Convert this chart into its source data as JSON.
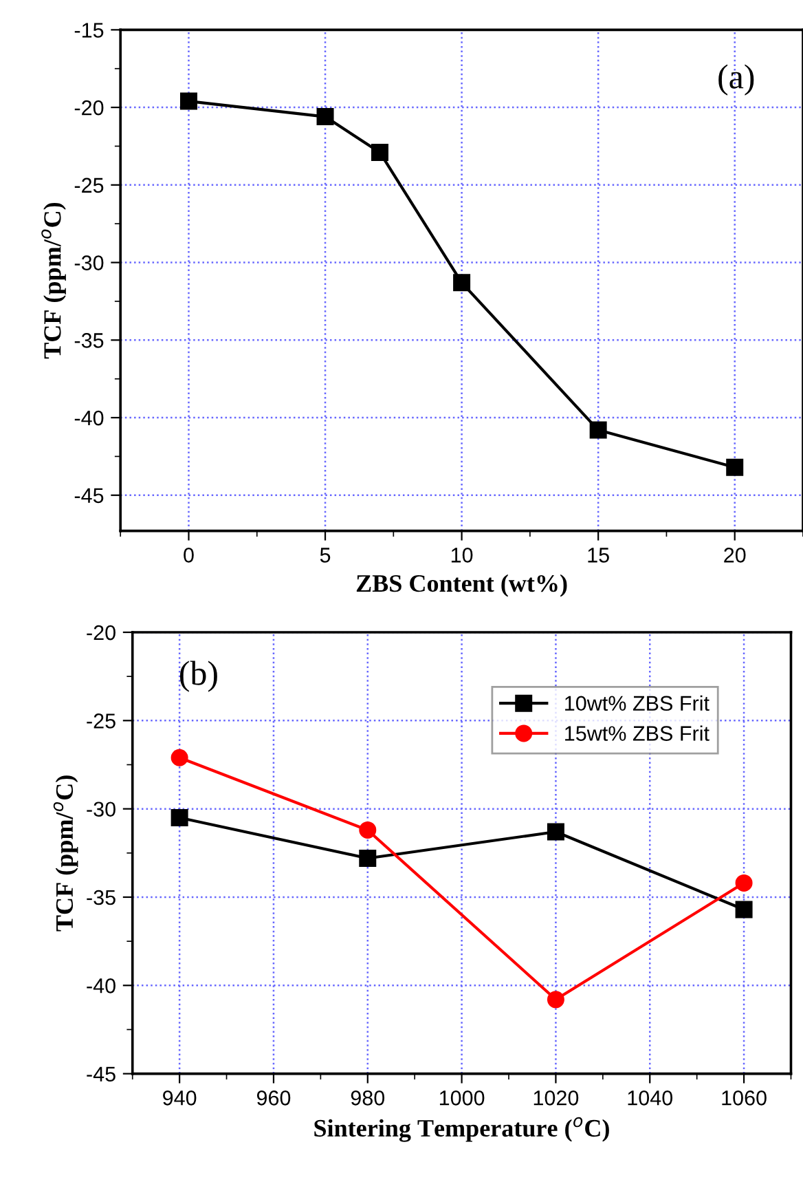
{
  "chart_data": [
    {
      "type": "line",
      "xlabel": "ZBS Content (wt%)",
      "ylabel": "TCF (ppm/$^{o}$C)",
      "annotations": [
        "(a)"
      ],
      "x": [
        0,
        5,
        7,
        10,
        15,
        20
      ],
      "series": [
        {
          "color": "#000000",
          "values": [
            -19.6,
            -20.6,
            -22.9,
            -31.3,
            -40.8,
            -43.2
          ],
          "marker": "square"
        }
      ],
      "xlim": [
        -2.5,
        22.5
      ],
      "ylim": [
        -47.3,
        -15
      ],
      "xticks": [
        0,
        5,
        10,
        15,
        20
      ],
      "yticks": [
        -45,
        -40,
        -35,
        -30,
        -25,
        -20,
        -15
      ],
      "grid": true,
      "line_style": "solid"
    },
    {
      "type": "line",
      "xlabel": "Sintering Temperature ($^{o}$C)",
      "ylabel": "TCF (ppm/$^{o}$C)",
      "annotations": [
        "(b)"
      ],
      "x": [
        940,
        980,
        1020,
        1060
      ],
      "series": [
        {
          "name": "10wt% ZBS Frit",
          "color": "#000000",
          "values": [
            -30.5,
            -32.8,
            -31.3,
            -35.7
          ],
          "marker": "square"
        },
        {
          "name": "15wt% ZBS Frit",
          "color": "#ff0000",
          "values": [
            -27.1,
            -31.2,
            -40.8,
            -34.2
          ],
          "marker": "circle"
        }
      ],
      "xlim": [
        930,
        1070
      ],
      "ylim": [
        -45,
        -20
      ],
      "xticks": [
        940,
        960,
        980,
        1000,
        1020,
        1040,
        1060
      ],
      "yticks": [
        -45,
        -40,
        -35,
        -30,
        -25,
        -20
      ],
      "grid": true,
      "legend": "top right",
      "line_style": "solid"
    }
  ]
}
